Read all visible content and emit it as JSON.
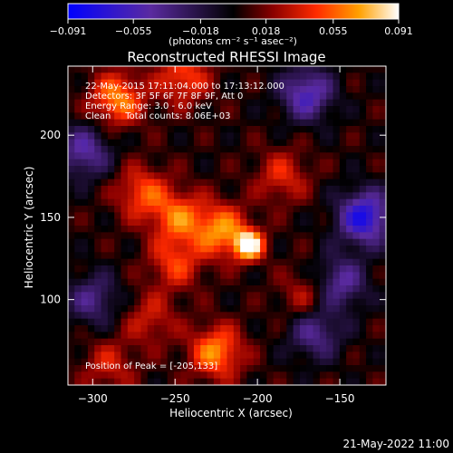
{
  "chart_data": {
    "type": "heatmap",
    "title": "Reconstructed RHESSI Image",
    "xlabel": "Heliocentric X (arcsec)",
    "ylabel": "Heliocentric Y (arcsec)",
    "xlim": [
      -315,
      -122
    ],
    "ylim": [
      48,
      242
    ],
    "x_ticks": [
      -300,
      -250,
      -200,
      -150
    ],
    "x_tick_labels": [
      "−300",
      "−250",
      "−200",
      "−150"
    ],
    "y_ticks": [
      100,
      150,
      200
    ],
    "y_tick_labels": [
      "100",
      "150",
      "200"
    ],
    "colorbar": {
      "min": -0.091,
      "max": 0.091,
      "tick_values": [
        -0.091,
        -0.055,
        -0.018,
        0.018,
        0.055,
        0.091
      ],
      "tick_labels": [
        "−0.091",
        "−0.055",
        "−0.018",
        "0.018",
        "0.055",
        "0.091"
      ],
      "unit_label": "(photons cm⁻² s⁻¹ asec⁻²)",
      "colors": [
        "#0000ff",
        "#5a2aa0",
        "#000000",
        "#7a0000",
        "#ff3000",
        "#ffa000",
        "#ffffff"
      ]
    },
    "annotations": {
      "time": "22-May-2015 17:11:04.000 to 17:13:12.000",
      "detectors": "Detectors: 3F 5F 6F 7F 8F 9F, Att 0",
      "energy": "Energy Range: 3.0 - 6.0 keV",
      "clean": "Clean     Total counts: 8.06E+03",
      "peak": "Position of Peak = [-205,133]"
    },
    "peak": {
      "x": -205,
      "y": 133
    },
    "sources": [
      {
        "x": -205,
        "y": 133,
        "value": 0.091
      },
      {
        "x": -222,
        "y": 142,
        "value": 0.06
      },
      {
        "x": -248,
        "y": 150,
        "value": 0.05
      },
      {
        "x": -270,
        "y": 165,
        "value": 0.045
      },
      {
        "x": -250,
        "y": 122,
        "value": 0.04
      },
      {
        "x": -285,
        "y": 222,
        "value": 0.06
      },
      {
        "x": -245,
        "y": 235,
        "value": 0.045
      },
      {
        "x": -225,
        "y": 68,
        "value": 0.06
      },
      {
        "x": -290,
        "y": 60,
        "value": 0.03
      },
      {
        "x": -185,
        "y": 175,
        "value": 0.035
      },
      {
        "x": -170,
        "y": 102,
        "value": 0.03
      },
      {
        "x": -265,
        "y": 88,
        "value": 0.03
      }
    ],
    "negative_regions": [
      {
        "x": -170,
        "y": 225,
        "value": -0.06
      },
      {
        "x": -135,
        "y": 150,
        "value": -0.08
      },
      {
        "x": -150,
        "y": 110,
        "value": -0.05
      },
      {
        "x": -305,
        "y": 190,
        "value": -0.05
      },
      {
        "x": -165,
        "y": 80,
        "value": -0.045
      },
      {
        "x": -300,
        "y": 100,
        "value": -0.04
      }
    ]
  },
  "footer": {
    "date": "21-May-2022 11:00"
  }
}
